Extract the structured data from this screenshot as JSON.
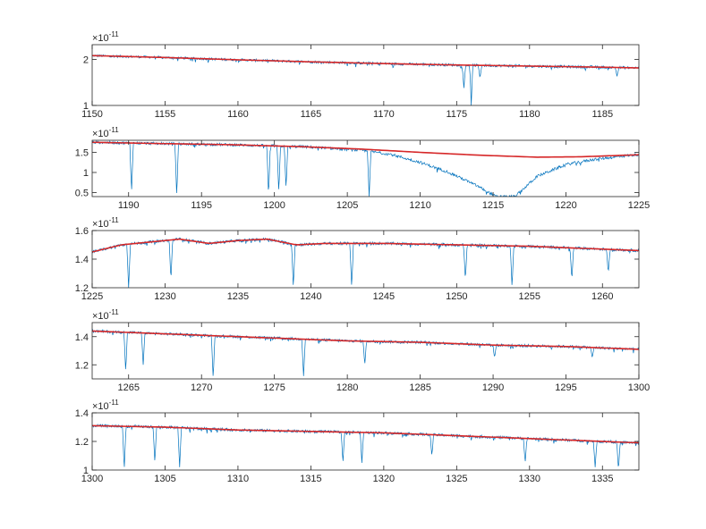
{
  "chart_data": [
    {
      "type": "line",
      "title": "",
      "xlabel": "",
      "ylabel": "",
      "xlim": [
        1150,
        1187.5
      ],
      "ylim": [
        1,
        2.5
      ],
      "yscale": "log",
      "y_exponent": "×10^-11",
      "xticks": [
        "1150",
        "1155",
        "1160",
        "1165",
        "1170",
        "1175",
        "1180",
        "1185"
      ],
      "yticks": [
        "1",
        "2"
      ],
      "series": [
        {
          "role": "spectrum",
          "color": "#0072BD",
          "x": [
            1150,
            1155,
            1160,
            1165,
            1170,
            1175,
            1180,
            1185,
            1187.5
          ],
          "values": [
            2.12,
            2.06,
            1.99,
            1.93,
            1.88,
            1.84,
            1.81,
            1.78,
            1.76
          ],
          "absorption_lines": [
            [
              1175.5,
              1.3
            ],
            [
              1176.0,
              1.0
            ],
            [
              1176.6,
              1.5
            ],
            [
              1186.0,
              1.55
            ]
          ]
        },
        {
          "role": "continuum-fit",
          "color": "#D62728",
          "x": [
            1150,
            1155,
            1160,
            1165,
            1170,
            1175,
            1180,
            1185,
            1187.5
          ],
          "values": [
            2.12,
            2.06,
            1.99,
            1.93,
            1.88,
            1.84,
            1.81,
            1.78,
            1.76
          ]
        }
      ]
    },
    {
      "type": "line",
      "title": "",
      "xlabel": "",
      "ylabel": "",
      "xlim": [
        1187.5,
        1225
      ],
      "ylim": [
        0.4,
        1.8
      ],
      "y_exponent": "×10^-11",
      "xticks": [
        "1190",
        "1195",
        "1200",
        "1205",
        "1210",
        "1215",
        "1220",
        "1225"
      ],
      "yticks": [
        "0.5",
        "1",
        "1.5"
      ],
      "series": [
        {
          "role": "spectrum",
          "color": "#0072BD",
          "x": [
            1187.5,
            1192,
            1197,
            1202,
            1206,
            1208,
            1210,
            1212,
            1214,
            1215.2,
            1216.5,
            1218,
            1220,
            1222,
            1225
          ],
          "values": [
            1.75,
            1.72,
            1.69,
            1.64,
            1.55,
            1.45,
            1.25,
            1.0,
            0.65,
            0.4,
            0.4,
            0.9,
            1.2,
            1.33,
            1.45
          ],
          "absorption_lines": [
            [
              1190.2,
              0.5
            ],
            [
              1193.3,
              0.4
            ],
            [
              1199.6,
              0.4
            ],
            [
              1200.3,
              0.5
            ],
            [
              1200.8,
              0.6
            ],
            [
              1206.5,
              0.4
            ]
          ]
        },
        {
          "role": "continuum-fit",
          "color": "#D62728",
          "x": [
            1187.5,
            1192,
            1197,
            1202,
            1206,
            1210,
            1214,
            1218,
            1221,
            1225
          ],
          "values": [
            1.75,
            1.72,
            1.69,
            1.64,
            1.58,
            1.5,
            1.43,
            1.38,
            1.39,
            1.44
          ]
        }
      ]
    },
    {
      "type": "line",
      "title": "",
      "xlabel": "",
      "ylabel": "",
      "xlim": [
        1225,
        1262.5
      ],
      "ylim": [
        1.2,
        1.6
      ],
      "y_exponent": "×10^-11",
      "xticks": [
        "1225",
        "1230",
        "1235",
        "1240",
        "1245",
        "1250",
        "1255",
        "1260"
      ],
      "yticks": [
        "1.2",
        "1.4",
        "1.6"
      ],
      "series": [
        {
          "role": "spectrum",
          "color": "#0072BD",
          "x": [
            1225,
            1227,
            1229,
            1231,
            1233,
            1235,
            1237,
            1239,
            1241,
            1245,
            1250,
            1255,
            1260,
            1262.5
          ],
          "values": [
            1.45,
            1.5,
            1.52,
            1.54,
            1.51,
            1.53,
            1.54,
            1.5,
            1.51,
            1.51,
            1.5,
            1.49,
            1.47,
            1.46
          ],
          "absorption_lines": [
            [
              1227.5,
              1.2
            ],
            [
              1230.4,
              1.25
            ],
            [
              1238.8,
              1.2
            ],
            [
              1242.8,
              1.2
            ],
            [
              1250.6,
              1.25
            ],
            [
              1253.8,
              1.2
            ],
            [
              1257.9,
              1.25
            ],
            [
              1260.4,
              1.3
            ]
          ]
        },
        {
          "role": "continuum-fit",
          "color": "#D62728",
          "x": [
            1225,
            1227,
            1229,
            1231,
            1233,
            1235,
            1237,
            1239,
            1241,
            1245,
            1250,
            1255,
            1260,
            1262.5
          ],
          "values": [
            1.45,
            1.5,
            1.52,
            1.54,
            1.51,
            1.53,
            1.54,
            1.5,
            1.51,
            1.51,
            1.5,
            1.49,
            1.47,
            1.46
          ]
        }
      ]
    },
    {
      "type": "line",
      "title": "",
      "xlabel": "",
      "ylabel": "",
      "xlim": [
        1262.5,
        1300
      ],
      "ylim": [
        1.1,
        1.5
      ],
      "y_exponent": "×10^-11",
      "xticks": [
        "1265",
        "1270",
        "1275",
        "1280",
        "1285",
        "1290",
        "1295",
        "1300"
      ],
      "yticks": [
        "1.2",
        "1.4"
      ],
      "series": [
        {
          "role": "spectrum",
          "color": "#0072BD",
          "x": [
            1262.5,
            1265,
            1270,
            1275,
            1280,
            1285,
            1290,
            1295,
            1300
          ],
          "values": [
            1.44,
            1.43,
            1.41,
            1.39,
            1.37,
            1.36,
            1.34,
            1.33,
            1.31
          ],
          "absorption_lines": [
            [
              1264.8,
              1.15
            ],
            [
              1266.0,
              1.2
            ],
            [
              1270.8,
              1.1
            ],
            [
              1277.0,
              1.12
            ],
            [
              1281.2,
              1.2
            ],
            [
              1290.1,
              1.25
            ],
            [
              1296.8,
              1.25
            ]
          ]
        },
        {
          "role": "continuum-fit",
          "color": "#D62728",
          "x": [
            1262.5,
            1265,
            1270,
            1275,
            1280,
            1285,
            1290,
            1295,
            1300
          ],
          "values": [
            1.44,
            1.43,
            1.41,
            1.39,
            1.37,
            1.36,
            1.34,
            1.33,
            1.31
          ]
        }
      ]
    },
    {
      "type": "line",
      "title": "",
      "xlabel": "",
      "ylabel": "",
      "xlim": [
        1300,
        1337.5
      ],
      "ylim": [
        1,
        1.4
      ],
      "y_exponent": "×10^-11",
      "xticks": [
        "1300",
        "1305",
        "1310",
        "1315",
        "1320",
        "1325",
        "1330",
        "1335"
      ],
      "yticks": [
        "1",
        "1.2",
        "1.4"
      ],
      "series": [
        {
          "role": "spectrum",
          "color": "#0072BD",
          "x": [
            1300,
            1305,
            1310,
            1315,
            1320,
            1325,
            1330,
            1335,
            1337.5
          ],
          "values": [
            1.31,
            1.3,
            1.28,
            1.27,
            1.26,
            1.24,
            1.22,
            1.2,
            1.19
          ],
          "absorption_lines": [
            [
              1302.2,
              1.0
            ],
            [
              1304.3,
              1.05
            ],
            [
              1306.0,
              1.02
            ],
            [
              1317.2,
              1.05
            ],
            [
              1318.5,
              1.05
            ],
            [
              1323.3,
              1.1
            ],
            [
              1329.7,
              1.05
            ],
            [
              1334.5,
              1.02
            ],
            [
              1336.1,
              1.0
            ]
          ]
        },
        {
          "role": "continuum-fit",
          "color": "#D62728",
          "x": [
            1300,
            1305,
            1310,
            1315,
            1320,
            1325,
            1330,
            1335,
            1337.5
          ],
          "values": [
            1.31,
            1.3,
            1.28,
            1.27,
            1.26,
            1.24,
            1.22,
            1.2,
            1.19
          ]
        }
      ]
    }
  ]
}
